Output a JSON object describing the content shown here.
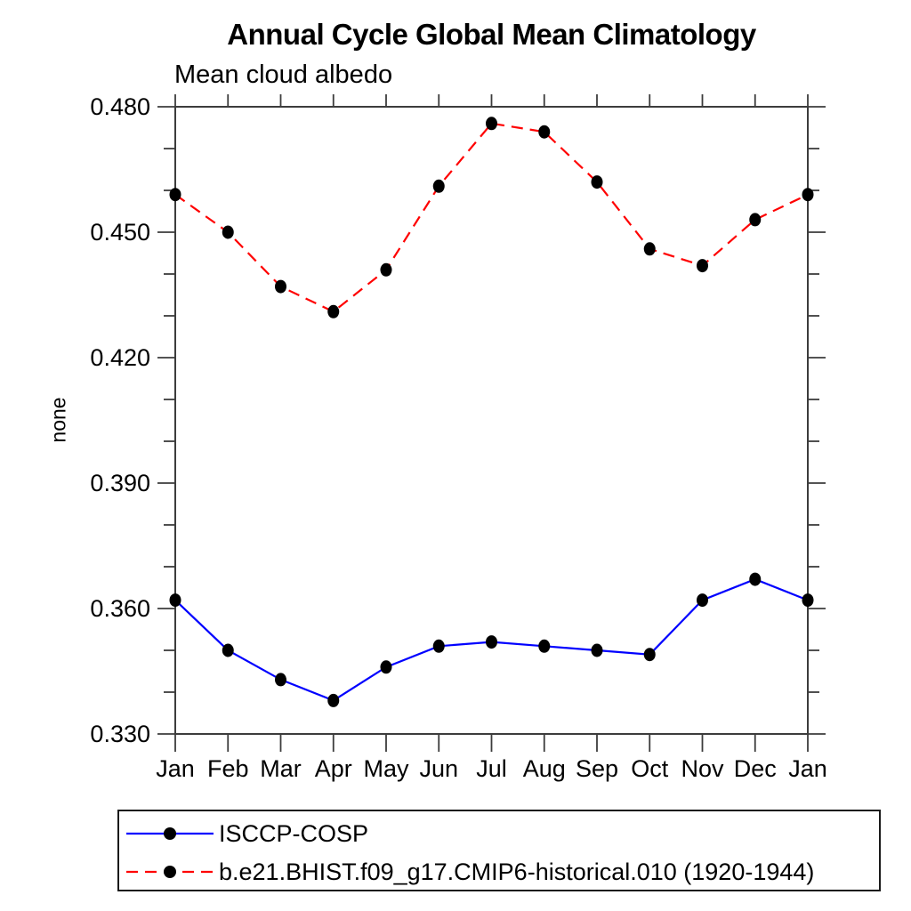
{
  "chart_data": {
    "type": "line",
    "title": "Annual Cycle Global Mean Climatology",
    "subtitle": "Mean cloud albedo",
    "ylabel": "none",
    "xlabel": "",
    "categories": [
      "Jan",
      "Feb",
      "Mar",
      "Apr",
      "May",
      "Jun",
      "Jul",
      "Aug",
      "Sep",
      "Oct",
      "Nov",
      "Dec",
      "Jan"
    ],
    "ylim": [
      0.33,
      0.48
    ],
    "ytick_major_step": 0.03,
    "ytick_minor_step": 0.01,
    "ytick_label_format_decimals": 3,
    "grid": false,
    "legend_position": "bottom-left-box",
    "frame_color": "#3c3c3c",
    "text_color": "#000000",
    "marker_color": "#000000",
    "series": [
      {
        "name": "ISCCP-COSP",
        "color": "#0000ff",
        "line_style": "solid",
        "marker": "filled-circle",
        "values": [
          0.362,
          0.35,
          0.343,
          0.338,
          0.346,
          0.351,
          0.352,
          0.351,
          0.35,
          0.349,
          0.362,
          0.367,
          0.362
        ]
      },
      {
        "name": "b.e21.BHIST.f09_g17.CMIP6-historical.010 (1920-1944)",
        "color": "#ff0000",
        "line_style": "dashed",
        "marker": "filled-circle",
        "values": [
          0.459,
          0.45,
          0.437,
          0.431,
          0.441,
          0.461,
          0.476,
          0.474,
          0.462,
          0.446,
          0.442,
          0.453,
          0.459
        ]
      }
    ]
  }
}
